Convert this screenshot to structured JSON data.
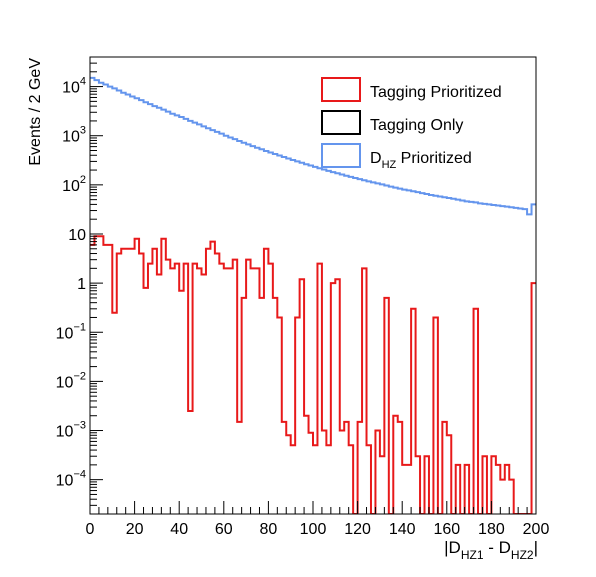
{
  "chart_data": {
    "type": "histogram",
    "ylabel": "Events / 2 GeV",
    "xlabel": {
      "base": "|D",
      "sub1": "HZ1",
      "mid": " - D",
      "sub2": "HZ2",
      "end": "|"
    },
    "xlim": [
      0,
      200
    ],
    "ylim": [
      2e-05,
      40000
    ],
    "y_scale": "log",
    "bin_width": 2,
    "x_ticks": [
      0,
      20,
      40,
      60,
      80,
      100,
      120,
      140,
      160,
      180,
      200
    ],
    "y_ticks": [
      {
        "value": 10000,
        "label": "10",
        "exp": "4"
      },
      {
        "value": 1000,
        "label": "10",
        "exp": "3"
      },
      {
        "value": 100,
        "label": "10",
        "exp": "2"
      },
      {
        "value": 10,
        "label": "10",
        "exp": ""
      },
      {
        "value": 1,
        "label": "1",
        "exp": ""
      },
      {
        "value": 0.1,
        "label": "10",
        "exp": "−1"
      },
      {
        "value": 0.01,
        "label": "10",
        "exp": "−2"
      },
      {
        "value": 0.001,
        "label": "10",
        "exp": "−3"
      },
      {
        "value": 0.0001,
        "label": "10",
        "exp": "−4"
      }
    ],
    "legend": {
      "placement": "top-right",
      "entries": [
        {
          "label": "Tagging Prioritized",
          "sub": "",
          "tail": "",
          "color": "#e8191a"
        },
        {
          "label": "Tagging Only",
          "sub": "",
          "tail": "",
          "color": "#000000"
        },
        {
          "label": "D",
          "sub": "HZ",
          "tail": " Prioritized",
          "color": "#6495ed"
        }
      ]
    },
    "series": [
      {
        "name": "D_HZ Prioritized",
        "color": "#6495ed",
        "values": [
          15000,
          13500,
          12000,
          11000,
          10000,
          9200,
          8300,
          7500,
          6900,
          6300,
          5800,
          5300,
          4800,
          4400,
          4000,
          3700,
          3400,
          3100,
          2800,
          2600,
          2400,
          2200,
          2000,
          1850,
          1700,
          1550,
          1420,
          1300,
          1200,
          1100,
          1000,
          920,
          850,
          780,
          720,
          665,
          615,
          570,
          530,
          490,
          455,
          425,
          395,
          368,
          343,
          320,
          300,
          281,
          263,
          247,
          232,
          218,
          205,
          193,
          182,
          172,
          162,
          153,
          145,
          138,
          131,
          124,
          118,
          112,
          107,
          102,
          97,
          92,
          88,
          84,
          80,
          77,
          74,
          71,
          68,
          65,
          62,
          60,
          58,
          56,
          54,
          52,
          50,
          48,
          46,
          45,
          44,
          42,
          41,
          40,
          39,
          38,
          37,
          36,
          35,
          34,
          33,
          32,
          25,
          40
        ]
      },
      {
        "name": "Tagging Prioritized",
        "color": "#e8191a",
        "values": [
          6,
          9,
          9,
          6,
          6,
          0.25,
          4,
          5,
          5,
          5,
          8,
          4,
          0.8,
          2.5,
          5,
          1.5,
          8,
          3,
          2,
          2.5,
          0.7,
          2.5,
          0.0025,
          2.5,
          2,
          1.5,
          5,
          7,
          4,
          2.5,
          2,
          2,
          3,
          0.0015,
          0.5,
          3,
          2,
          2,
          0.5,
          5,
          2.5,
          0.5,
          0.2,
          0.0015,
          0.0008,
          0.0005,
          0.2,
          1.2,
          0.002,
          0.0009,
          0.0005,
          2.5,
          0.001,
          0.0005,
          1,
          1.2,
          0.001,
          0.0015,
          0.0005,
          1e-05,
          0.0015,
          2,
          0.0005,
          1e-05,
          0.001,
          0.0003,
          0.5,
          1e-05,
          0.002,
          0.0015,
          0.0002,
          0.0002,
          0.3,
          0.0003,
          1e-05,
          0.0003,
          1e-05,
          0.2,
          1e-05,
          0.0015,
          0.0008,
          1e-05,
          0.0002,
          1e-05,
          0.0002,
          1e-05,
          0.3,
          1e-05,
          0.0003,
          1e-05,
          0.0003,
          0.0002,
          0.0001,
          0.0002,
          0.0001,
          1e-05,
          1e-05,
          1e-05,
          1e-05,
          1
        ]
      }
    ]
  }
}
